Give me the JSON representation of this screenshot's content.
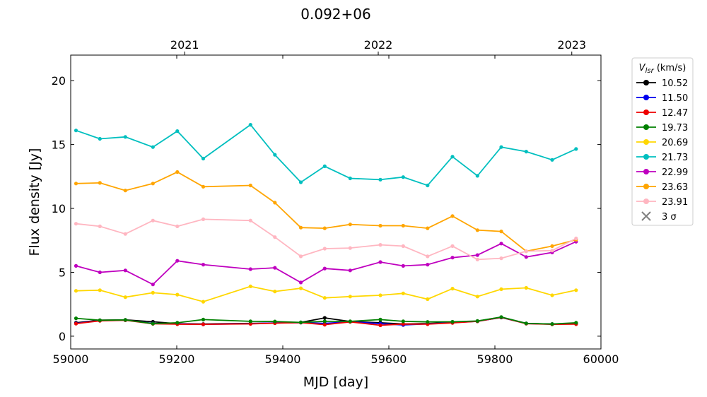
{
  "chart_data": {
    "type": "line",
    "title": "0.092+06",
    "xlabel": "MJD [day]",
    "ylabel": "Flux density [Jy]",
    "xlim": [
      59000,
      60000
    ],
    "ylim": [
      -1,
      22
    ],
    "xticks": [
      59000,
      59200,
      59400,
      59600,
      59800,
      60000
    ],
    "yticks": [
      0,
      5,
      10,
      15,
      20
    ],
    "top_axis": {
      "ticks": [
        {
          "label": "2021",
          "mjd": 59215
        },
        {
          "label": "2022",
          "mjd": 59580
        },
        {
          "label": "2023",
          "mjd": 59945
        }
      ]
    },
    "x": [
      59010,
      59055,
      59103,
      59155,
      59201,
      59250,
      59339,
      59385,
      59434,
      59479,
      59527,
      59584,
      59627,
      59673,
      59720,
      59767,
      59812,
      59859,
      59908,
      59953
    ],
    "legend": {
      "title": "V_lsr (km/s)",
      "title_main": "V",
      "title_sub": "lsr",
      "title_rest": " (km/s)",
      "sigma_label": "3 σ",
      "placement": "outside-right"
    },
    "series": [
      {
        "name": "10.52",
        "color": "#000000",
        "values": [
          1.05,
          1.25,
          1.28,
          1.13,
          0.98,
          0.95,
          1.0,
          1.03,
          1.08,
          1.43,
          1.15,
          1.05,
          0.95,
          0.99,
          1.08,
          1.18,
          1.48,
          1.0,
          0.95,
          1.02
        ]
      },
      {
        "name": "11.50",
        "color": "#0000ee",
        "values": [
          1.0,
          1.22,
          1.26,
          1.0,
          0.97,
          0.93,
          0.98,
          1.04,
          1.06,
          1.0,
          1.13,
          0.98,
          0.88,
          0.96,
          1.06,
          1.17,
          1.46,
          0.99,
          0.94,
          0.96
        ]
      },
      {
        "name": "12.47",
        "color": "#ee0000",
        "values": [
          0.98,
          1.2,
          1.25,
          0.97,
          0.94,
          0.93,
          0.96,
          1.02,
          1.06,
          0.9,
          1.12,
          0.85,
          0.95,
          0.94,
          1.04,
          1.16,
          1.47,
          0.98,
          0.93,
          0.94
        ]
      },
      {
        "name": "19.73",
        "color": "#008000",
        "values": [
          1.4,
          1.25,
          1.27,
          0.98,
          1.05,
          1.3,
          1.16,
          1.15,
          1.08,
          1.16,
          1.16,
          1.3,
          1.16,
          1.12,
          1.13,
          1.19,
          1.5,
          1.0,
          0.95,
          1.05
        ]
      },
      {
        "name": "20.69",
        "color": "#ffd700",
        "values": [
          3.55,
          3.6,
          3.05,
          3.4,
          3.25,
          2.7,
          3.9,
          3.5,
          3.75,
          3.0,
          3.1,
          3.2,
          3.35,
          2.9,
          3.72,
          3.1,
          3.68,
          3.78,
          3.2,
          3.6
        ]
      },
      {
        "name": "21.73",
        "color": "#00bfbf",
        "values": [
          16.1,
          15.45,
          15.6,
          14.8,
          16.05,
          13.9,
          16.55,
          14.2,
          12.05,
          13.3,
          12.35,
          12.25,
          12.45,
          11.8,
          14.05,
          12.55,
          14.8,
          14.45,
          13.8,
          14.65
        ]
      },
      {
        "name": "22.99",
        "color": "#bf00bf",
        "values": [
          5.5,
          5.0,
          5.15,
          4.05,
          5.9,
          5.6,
          5.25,
          5.35,
          4.2,
          5.3,
          5.15,
          5.8,
          5.5,
          5.6,
          6.15,
          6.35,
          7.25,
          6.2,
          6.55,
          7.4
        ]
      },
      {
        "name": "23.63",
        "color": "#ffa500",
        "values": [
          11.95,
          12.0,
          11.4,
          11.95,
          12.85,
          11.7,
          11.8,
          10.45,
          8.5,
          8.45,
          8.75,
          8.65,
          8.65,
          8.45,
          9.4,
          8.3,
          8.2,
          6.65,
          7.05,
          7.55
        ]
      },
      {
        "name": "23.91",
        "color": "#ffb6c1",
        "values": [
          8.8,
          8.6,
          8.0,
          9.05,
          8.6,
          9.15,
          9.05,
          7.75,
          6.25,
          6.85,
          6.9,
          7.15,
          7.05,
          6.25,
          7.05,
          6.0,
          6.1,
          6.65,
          6.7,
          7.65
        ]
      }
    ]
  }
}
